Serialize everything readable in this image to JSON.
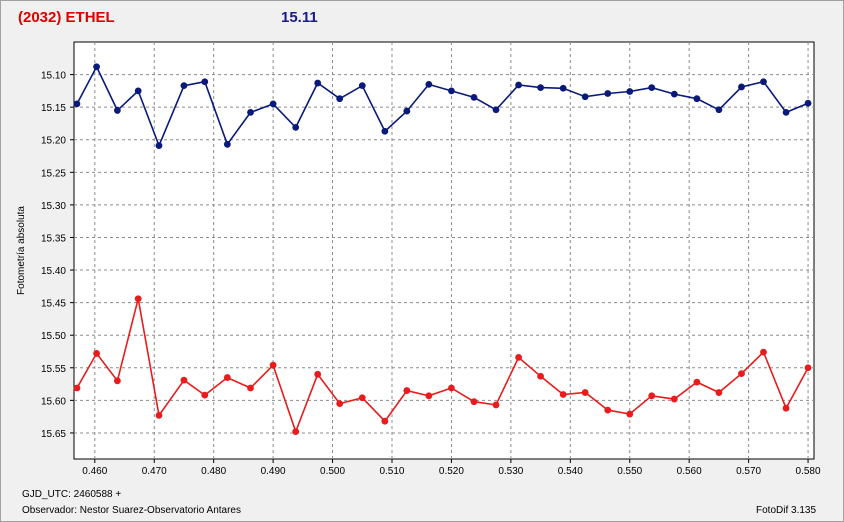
{
  "header": {
    "object_title": "(2032) ETHEL",
    "magnitude_label": "15.11"
  },
  "footer": {
    "gjd": "GJD_UTC: 2460588 +",
    "observer": "Observador: Nestor Suarez-Observatorio Antares",
    "software": "FotoDif 3.135"
  },
  "colors": {
    "series_top": "#0a1a7a",
    "series_bottom": "#e81c1c",
    "title_left": "#e00000",
    "title_right": "#1a1a8c"
  },
  "chart_data": {
    "type": "line",
    "title": "(2032) ETHEL",
    "ylabel": "Fotometría absoluta",
    "xlabel": "",
    "xlim": [
      0.4565,
      0.581
    ],
    "ylim": [
      15.05,
      15.69
    ],
    "y_reversed": true,
    "grid": true,
    "x_ticks": [
      "0.460",
      "0.470",
      "0.480",
      "0.490",
      "0.500",
      "0.510",
      "0.520",
      "0.530",
      "0.540",
      "0.550",
      "0.560",
      "0.570",
      "0.580"
    ],
    "y_ticks": [
      "15.10",
      "15.15",
      "15.20",
      "15.25",
      "15.30",
      "15.35",
      "15.40",
      "15.45",
      "15.50",
      "15.55",
      "15.60",
      "15.65"
    ],
    "series": [
      {
        "color": "#0a1a7a",
        "x": [
          0.457,
          0.4603,
          0.4638,
          0.4673,
          0.4708,
          0.475,
          0.4785,
          0.4823,
          0.4862,
          0.49,
          0.4938,
          0.4975,
          0.5012,
          0.505,
          0.5088,
          0.5125,
          0.5162,
          0.52,
          0.5238,
          0.5275,
          0.5313,
          0.535,
          0.5388,
          0.5425,
          0.5463,
          0.55,
          0.5537,
          0.5575,
          0.5613,
          0.565,
          0.5688,
          0.5725,
          0.5763,
          0.58
        ],
        "y": [
          15.145,
          15.088,
          15.155,
          15.125,
          15.209,
          15.117,
          15.111,
          15.207,
          15.158,
          15.145,
          15.181,
          15.113,
          15.137,
          15.117,
          15.187,
          15.156,
          15.115,
          15.125,
          15.135,
          15.154,
          15.116,
          15.12,
          15.121,
          15.134,
          15.129,
          15.126,
          15.12,
          15.13,
          15.137,
          15.154,
          15.119,
          15.111,
          15.158,
          15.144
        ]
      },
      {
        "color": "#e81c1c",
        "x": [
          0.457,
          0.4603,
          0.4638,
          0.4673,
          0.4708,
          0.475,
          0.4785,
          0.4823,
          0.4862,
          0.49,
          0.4938,
          0.4975,
          0.5012,
          0.505,
          0.5088,
          0.5125,
          0.5162,
          0.52,
          0.5238,
          0.5275,
          0.5313,
          0.535,
          0.5388,
          0.5425,
          0.5463,
          0.55,
          0.5537,
          0.5575,
          0.5613,
          0.565,
          0.5688,
          0.5725,
          0.5763,
          0.58
        ],
        "y": [
          15.581,
          15.528,
          15.57,
          15.444,
          15.623,
          15.569,
          15.592,
          15.565,
          15.581,
          15.546,
          15.648,
          15.56,
          15.605,
          15.596,
          15.632,
          15.585,
          15.593,
          15.581,
          15.602,
          15.607,
          15.534,
          15.563,
          15.591,
          15.588,
          15.615,
          15.621,
          15.593,
          15.598,
          15.572,
          15.588,
          15.559,
          15.526,
          15.612,
          15.55
        ]
      }
    ]
  }
}
